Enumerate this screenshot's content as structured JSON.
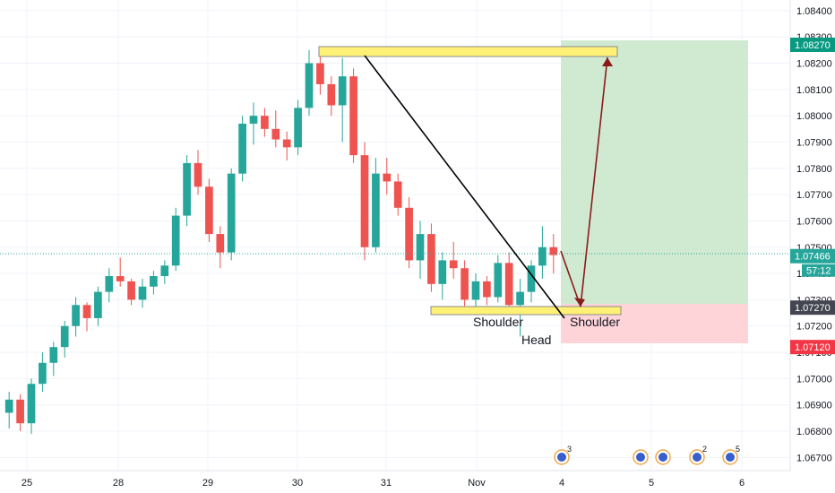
{
  "chart_data": {
    "type": "candlestick",
    "x_ticks": [
      "25",
      "28",
      "29",
      "30",
      "31",
      "Nov",
      "4",
      "5",
      "6"
    ],
    "y_ticks": [
      "1.08400",
      "1.08300",
      "1.08200",
      "1.08100",
      "1.08000",
      "1.07900",
      "1.07800",
      "1.07700",
      "1.07600",
      "1.07500",
      "1.07400",
      "1.07300",
      "1.07200",
      "1.07100",
      "1.07000",
      "1.06900",
      "1.06800",
      "1.06700"
    ],
    "ylim": [
      1.0665,
      1.0842
    ],
    "current_price": {
      "label": "1.07466",
      "value": 1.07466,
      "countdown": "57:12",
      "color": "#26a69a"
    },
    "levels": [
      {
        "label": "1.08270",
        "value": 1.0827,
        "color": "#089981"
      },
      {
        "label": "1.07270",
        "value": 1.0727,
        "color": "#434651"
      },
      {
        "label": "1.07120",
        "value": 1.0712,
        "color": "#f23645"
      }
    ],
    "ohlc_sketch": [
      [
        1.0687,
        1.0695,
        1.0681,
        1.0692
      ],
      [
        1.0692,
        1.0694,
        1.068,
        1.0683
      ],
      [
        1.0683,
        1.07,
        1.0679,
        1.0698
      ],
      [
        1.0698,
        1.071,
        1.0695,
        1.0706
      ],
      [
        1.0706,
        1.0714,
        1.0701,
        1.0712
      ],
      [
        1.0712,
        1.0722,
        1.0708,
        1.072
      ],
      [
        1.072,
        1.0731,
        1.0716,
        1.0728
      ],
      [
        1.0728,
        1.0729,
        1.0718,
        1.0723
      ],
      [
        1.0723,
        1.0735,
        1.072,
        1.0733
      ],
      [
        1.0733,
        1.0742,
        1.0729,
        1.0739
      ],
      [
        1.0739,
        1.0746,
        1.0735,
        1.0737
      ],
      [
        1.0737,
        1.0738,
        1.0728,
        1.073
      ],
      [
        1.073,
        1.0738,
        1.0727,
        1.0735
      ],
      [
        1.0735,
        1.0741,
        1.0732,
        1.0739
      ],
      [
        1.0739,
        1.0745,
        1.0736,
        1.0743
      ],
      [
        1.0743,
        1.0765,
        1.0741,
        1.0762
      ],
      [
        1.0762,
        1.0785,
        1.0758,
        1.0782
      ],
      [
        1.0782,
        1.0787,
        1.077,
        1.0773
      ],
      [
        1.0773,
        1.0776,
        1.0752,
        1.0755
      ],
      [
        1.0755,
        1.0758,
        1.0742,
        1.0748
      ],
      [
        1.0748,
        1.078,
        1.0745,
        1.0778
      ],
      [
        1.0778,
        1.08,
        1.0775,
        1.0797
      ],
      [
        1.0797,
        1.0805,
        1.0789,
        1.08
      ],
      [
        1.08,
        1.0803,
        1.0792,
        1.0795
      ],
      [
        1.0795,
        1.0802,
        1.0788,
        1.0791
      ],
      [
        1.0791,
        1.0794,
        1.0783,
        1.0788
      ],
      [
        1.0788,
        1.0806,
        1.0785,
        1.0803
      ],
      [
        1.0803,
        1.0825,
        1.08,
        1.082
      ],
      [
        1.082,
        1.0826,
        1.0808,
        1.0812
      ],
      [
        1.0812,
        1.0815,
        1.08,
        1.0804
      ],
      [
        1.0804,
        1.0822,
        1.079,
        1.0815
      ],
      [
        1.0815,
        1.0818,
        1.0782,
        1.0785
      ],
      [
        1.0785,
        1.079,
        1.0745,
        1.075
      ],
      [
        1.075,
        1.0784,
        1.0748,
        1.0778
      ],
      [
        1.0778,
        1.0784,
        1.077,
        1.0775
      ],
      [
        1.0775,
        1.0778,
        1.0762,
        1.0765
      ],
      [
        1.0765,
        1.0769,
        1.0742,
        1.0745
      ],
      [
        1.0745,
        1.076,
        1.0738,
        1.0755
      ],
      [
        1.0755,
        1.0759,
        1.0733,
        1.0736
      ],
      [
        1.0736,
        1.0748,
        1.073,
        1.0745
      ],
      [
        1.0745,
        1.0752,
        1.0738,
        1.0742
      ],
      [
        1.0742,
        1.0745,
        1.0727,
        1.073
      ],
      [
        1.073,
        1.074,
        1.0726,
        1.0737
      ],
      [
        1.0737,
        1.0739,
        1.0728,
        1.0731
      ],
      [
        1.0731,
        1.0747,
        1.0729,
        1.0744
      ],
      [
        1.0744,
        1.0748,
        1.0725,
        1.0728
      ],
      [
        1.0728,
        1.0738,
        1.0716,
        1.0733
      ],
      [
        1.0733,
        1.0745,
        1.0729,
        1.0743
      ],
      [
        1.0743,
        1.0758,
        1.0738,
        1.075
      ],
      [
        1.075,
        1.0755,
        1.074,
        1.0747
      ]
    ]
  },
  "annotations": {
    "shoulder_left": "Shoulder",
    "head": "Head",
    "shoulder_right": "Shoulder"
  },
  "event_badges": [
    {
      "count": "3"
    },
    {
      "count": ""
    },
    {
      "count": ""
    },
    {
      "count": "2"
    },
    {
      "count": "5"
    }
  ],
  "colors": {
    "up": "#26a69a",
    "down": "#ef5350",
    "target_zone": "#c8e6c9",
    "stop_zone": "#ffcdd2",
    "highlight": "#fff176",
    "highlight_orange": "#ffd54f",
    "trend_line": "#000000",
    "arrow": "#8b1a1a"
  }
}
